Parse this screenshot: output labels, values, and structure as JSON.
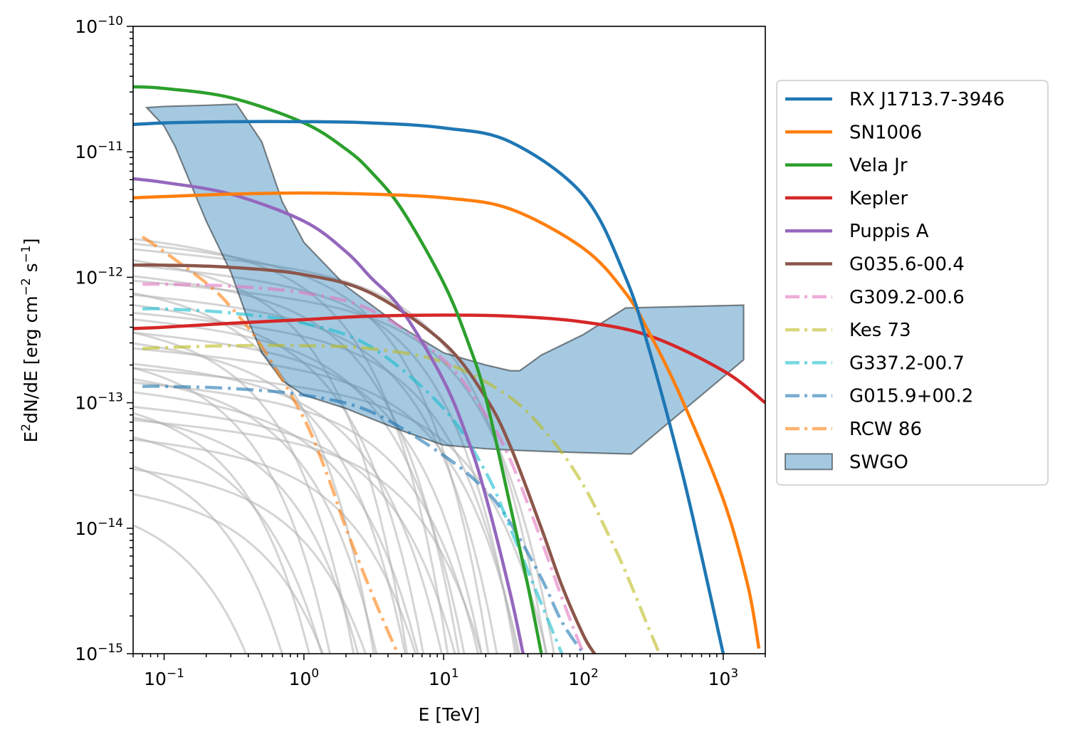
{
  "chart_data": {
    "type": "line",
    "xlabel": "E [TeV]",
    "ylabel": {
      "base": "E",
      "sup1": "2",
      "mid": "dN/dE [erg cm",
      "sup2": "−2",
      "mid2": " s",
      "sup3": "−1",
      "end": "]"
    },
    "x_scale": "log",
    "y_scale": "log",
    "xlim": [
      0.06,
      2000
    ],
    "ylim": [
      1e-15,
      1e-10
    ],
    "x_ticks": [
      {
        "value": 0.1,
        "base": "10",
        "exp": "−1"
      },
      {
        "value": 1,
        "base": "10",
        "exp": "0"
      },
      {
        "value": 10,
        "base": "10",
        "exp": "1"
      },
      {
        "value": 100,
        "base": "10",
        "exp": "2"
      },
      {
        "value": 1000,
        "base": "10",
        "exp": "3"
      }
    ],
    "y_ticks": [
      {
        "value": 1e-15,
        "base": "10",
        "exp": "−15"
      },
      {
        "value": 1e-14,
        "base": "10",
        "exp": "−14"
      },
      {
        "value": 1e-13,
        "base": "10",
        "exp": "−13"
      },
      {
        "value": 1e-12,
        "base": "10",
        "exp": "−12"
      },
      {
        "value": 1e-11,
        "base": "10",
        "exp": "−11"
      },
      {
        "value": 1e-10,
        "base": "10",
        "exp": "−10"
      }
    ],
    "legend_position": "outside-right",
    "series": [
      {
        "name": "RX J1713.7-3946",
        "color": "#1f77b4",
        "style": "solid",
        "x": [
          0.06,
          0.1,
          0.3,
          1,
          3,
          10,
          30,
          100,
          200,
          300,
          500,
          700,
          1000
        ],
        "y": [
          1.65e-11,
          1.7e-11,
          1.74e-11,
          1.74e-11,
          1.7e-11,
          1.55e-11,
          1.2e-11,
          4.5e-12,
          1e-12,
          2.5e-13,
          3e-14,
          6e-15,
          1e-15
        ]
      },
      {
        "name": "SN1006",
        "color": "#ff7f0e",
        "style": "solid",
        "x": [
          0.06,
          0.1,
          0.3,
          1,
          3,
          10,
          30,
          100,
          200,
          300,
          500,
          1000,
          1500,
          1800
        ],
        "y": [
          4.3e-12,
          4.4e-12,
          4.6e-12,
          4.7e-12,
          4.6e-12,
          4.3e-12,
          3.5e-12,
          1.7e-12,
          7.5e-13,
          3.5e-13,
          1.1e-13,
          1.7e-14,
          3.5e-15,
          1.1e-15
        ]
      },
      {
        "name": "Vela Jr",
        "color": "#2ca02c",
        "style": "solid",
        "x": [
          0.06,
          0.1,
          0.3,
          1,
          2,
          3,
          5,
          10,
          15,
          20,
          30,
          40,
          50
        ],
        "y": [
          3.3e-11,
          3.2e-11,
          2.7e-11,
          1.7e-11,
          1.05e-11,
          7e-12,
          3.5e-12,
          9e-13,
          3e-13,
          1.1e-13,
          1.5e-14,
          3.5e-15,
          1e-15
        ]
      },
      {
        "name": "Kepler",
        "color": "#d62728",
        "style": "solid",
        "x": [
          0.06,
          0.1,
          0.3,
          1,
          3,
          10,
          30,
          100,
          300,
          1000,
          2000
        ],
        "y": [
          3.9e-13,
          4e-13,
          4.3e-13,
          4.6e-13,
          4.9e-13,
          5e-13,
          4.9e-13,
          4.4e-13,
          3.4e-13,
          1.8e-13,
          1e-13
        ]
      },
      {
        "name": "Puppis A",
        "color": "#9467bd",
        "style": "solid",
        "x": [
          0.06,
          0.1,
          0.3,
          1,
          2,
          3,
          5,
          10,
          15,
          20,
          30,
          37
        ],
        "y": [
          6.1e-12,
          5.7e-12,
          4.6e-12,
          2.8e-12,
          1.6e-12,
          1e-12,
          5.5e-13,
          1.5e-13,
          5e-14,
          1.8e-14,
          3e-15,
          1e-15
        ]
      },
      {
        "name": "G035.6-00.4",
        "color": "#8c564b",
        "style": "solid",
        "x": [
          0.06,
          0.1,
          0.3,
          1,
          3,
          10,
          20,
          30,
          50,
          70,
          100,
          120
        ],
        "y": [
          1.25e-12,
          1.25e-12,
          1.2e-12,
          1.05e-12,
          7.5e-13,
          3e-13,
          1.1e-13,
          4.5e-14,
          1e-14,
          3.5e-15,
          1.4e-15,
          1e-15
        ]
      },
      {
        "name": "G309.2-00.6",
        "color": "#e377c2",
        "style": "dashdot",
        "x": [
          0.07,
          0.1,
          0.3,
          1,
          3,
          10,
          20,
          30,
          50,
          70,
          100
        ],
        "y": [
          8.8e-13,
          8.8e-13,
          8.5e-13,
          7.5e-13,
          5.5e-13,
          2.2e-13,
          8e-14,
          3.5e-14,
          8e-15,
          2.8e-15,
          1e-15
        ]
      },
      {
        "name": "Kes 73",
        "color": "#bcbd22",
        "style": "dashdot",
        "x": [
          0.07,
          0.1,
          0.3,
          1,
          3,
          10,
          30,
          60,
          100,
          150,
          200,
          300,
          350
        ],
        "y": [
          2.7e-13,
          2.75e-13,
          2.85e-13,
          2.85e-13,
          2.7e-13,
          2.1e-13,
          1.1e-13,
          5e-14,
          2.2e-14,
          9e-15,
          4.5e-15,
          1.5e-15,
          1e-15
        ]
      },
      {
        "name": "G337.2-00.7",
        "color": "#17becf",
        "style": "dashdot",
        "x": [
          0.07,
          0.1,
          0.3,
          1,
          3,
          10,
          20,
          30,
          50,
          70
        ],
        "y": [
          5.6e-13,
          5.6e-13,
          5.2e-13,
          4.3e-13,
          2.8e-13,
          9e-14,
          2.8e-14,
          1e-14,
          2.5e-15,
          1e-15
        ]
      },
      {
        "name": "G015.9+00.2",
        "color": "#1f77b4",
        "style": "dashdot",
        "x": [
          0.07,
          0.1,
          0.3,
          1,
          3,
          10,
          20,
          30,
          50,
          70,
          100
        ],
        "y": [
          1.35e-13,
          1.35e-13,
          1.3e-13,
          1.15e-13,
          8.5e-14,
          3.8e-14,
          2e-14,
          1.1e-14,
          4e-15,
          1.8e-15,
          1e-15
        ]
      },
      {
        "name": "RCW 86",
        "color": "#ff7f0e",
        "style": "dashdot",
        "x": [
          0.07,
          0.1,
          0.2,
          0.3,
          0.5,
          1,
          1.5,
          2,
          3,
          4,
          4.7
        ],
        "y": [
          2.1e-12,
          1.6e-12,
          9e-13,
          5.8e-13,
          2.8e-13,
          7.5e-14,
          2.5e-14,
          1e-14,
          3.2e-15,
          1.5e-15,
          1e-15
        ]
      }
    ],
    "band": {
      "name": "SWGO",
      "color": "#1f77b4",
      "upper": {
        "x": [
          0.075,
          0.1,
          0.2,
          0.33,
          0.5,
          0.7,
          1,
          2,
          5,
          10,
          20,
          30,
          35,
          50,
          100,
          200,
          1400
        ],
        "y": [
          2.25e-11,
          2.3e-11,
          2.35e-11,
          2.4e-11,
          1.2e-11,
          4e-12,
          1.9e-12,
          8.5e-13,
          4e-13,
          2.5e-13,
          2e-13,
          1.8e-13,
          1.8e-13,
          2.4e-13,
          3.5e-13,
          5.7e-13,
          6e-13
        ]
      },
      "lower": {
        "x": [
          1400,
          1400,
          220,
          100,
          50,
          30,
          20,
          10,
          8,
          5,
          3,
          2,
          1,
          0.7,
          0.5,
          0.4,
          0.3,
          0.2,
          0.12,
          0.1,
          0.075
        ],
        "y": [
          6e-13,
          2.2e-13,
          3.9e-14,
          4e-14,
          4.1e-14,
          4.2e-14,
          4.3e-14,
          4.6e-14,
          5e-14,
          6e-14,
          7.5e-14,
          9e-14,
          1.15e-13,
          1.5e-13,
          2.5e-13,
          4.5e-13,
          1.1e-12,
          2.8e-12,
          1.1e-11,
          1.6e-11,
          2.25e-11
        ]
      }
    },
    "gray_curves": [
      {
        "norm": 2e-12,
        "cutoff": 1.5
      },
      {
        "norm": 1.8e-12,
        "cutoff": 3
      },
      {
        "norm": 1.6e-12,
        "cutoff": 8
      },
      {
        "norm": 1.4e-12,
        "cutoff": 0.8
      },
      {
        "norm": 1.2e-12,
        "cutoff": 5
      },
      {
        "norm": 1e-12,
        "cutoff": 2
      },
      {
        "norm": 9e-13,
        "cutoff": 10
      },
      {
        "norm": 8e-13,
        "cutoff": 0.5
      },
      {
        "norm": 7e-13,
        "cutoff": 4
      },
      {
        "norm": 6e-13,
        "cutoff": 1.2
      },
      {
        "norm": 5e-13,
        "cutoff": 6
      },
      {
        "norm": 4.5e-13,
        "cutoff": 2.5
      },
      {
        "norm": 4e-13,
        "cutoff": 0.4
      },
      {
        "norm": 3.5e-13,
        "cutoff": 3.5
      },
      {
        "norm": 3e-13,
        "cutoff": 1
      },
      {
        "norm": 2.6e-13,
        "cutoff": 7
      },
      {
        "norm": 2.2e-13,
        "cutoff": 0.3
      },
      {
        "norm": 2e-13,
        "cutoff": 2
      },
      {
        "norm": 1.8e-13,
        "cutoff": 12
      },
      {
        "norm": 1.6e-13,
        "cutoff": 0.7
      },
      {
        "norm": 1.4e-13,
        "cutoff": 4
      },
      {
        "norm": 1.2e-13,
        "cutoff": 1.5
      },
      {
        "norm": 1e-13,
        "cutoff": 0.25
      },
      {
        "norm": 9e-14,
        "cutoff": 3
      },
      {
        "norm": 8e-14,
        "cutoff": 0.6
      },
      {
        "norm": 7e-14,
        "cutoff": 5
      },
      {
        "norm": 6e-14,
        "cutoff": 0.35
      },
      {
        "norm": 5e-14,
        "cutoff": 1.8
      },
      {
        "norm": 4e-14,
        "cutoff": 0.2
      },
      {
        "norm": 3e-14,
        "cutoff": 0.9
      },
      {
        "norm": 2e-14,
        "cutoff": 0.5
      },
      {
        "norm": 1.5e-14,
        "cutoff": 0.15
      }
    ],
    "gray_color": "#b0b0b0"
  }
}
